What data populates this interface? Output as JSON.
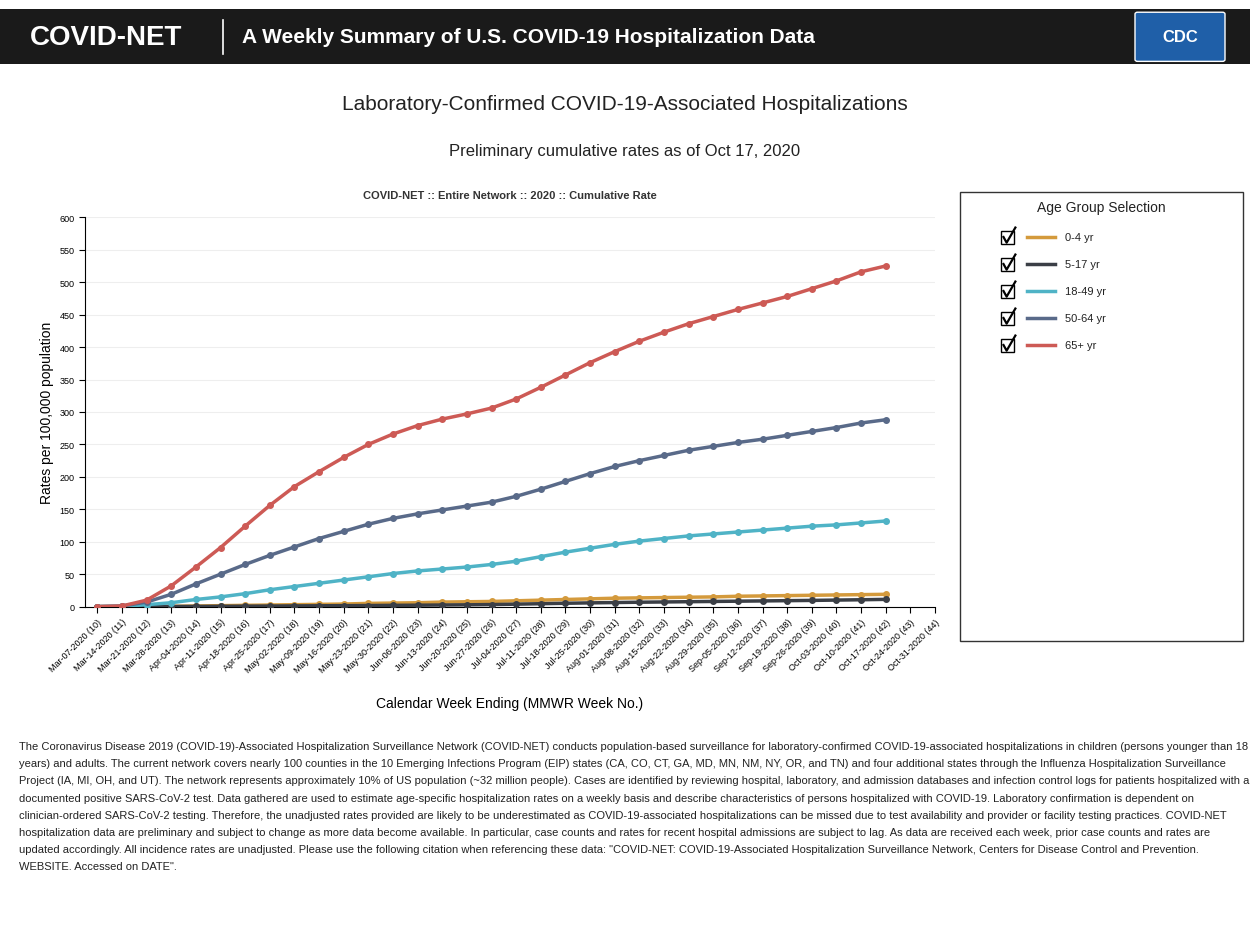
{
  "page": {
    "banner_title": "COVID-NET",
    "banner_subtitle": "A Weekly Summary of U.S. COVID-19 Hospitalization Data",
    "logo": "CDC",
    "title": "Laboratory-Confirmed COVID-19-Associated Hospitalizations",
    "subtitle": "Preliminary cumulative rates as of Oct 17, 2020",
    "footnote": "The Coronavirus Disease 2019 (COVID-19)-Associated Hospitalization Surveillance Network (COVID-NET) conducts population-based surveillance for laboratory-confirmed COVID-19-associated hospitalizations in children (persons younger than 18 years) and adults. The current network covers nearly 100 counties in the 10 Emerging Infections Program (EIP) states (CA, CO, CT, GA, MD, MN, NM, NY, OR, and TN) and four additional states through the Influenza Hospitalization Surveillance Project (IA, MI, OH, and UT). The network represents approximately 10% of US population (~32 million people). Cases are identified by reviewing hospital, laboratory, and admission databases and infection control logs for patients hospitalized with a documented positive SARS-CoV-2 test. Data gathered are used to estimate age-specific hospitalization rates on a weekly basis and describe characteristics of persons hospitalized with COVID-19. Laboratory confirmation is dependent on clinician-ordered SARS-CoV-2 testing. Therefore, the unadjusted rates provided are likely to be underestimated as COVID-19-associated hospitalizations can be missed due to test availability and provider or facility testing practices. COVID-NET hospitalization data are preliminary and subject to change as more data become available. In particular, case counts and rates for recent hospital admissions are subject to lag. As data are received each week, prior case counts and rates are updated accordingly. All incidence rates are unadjusted. Please use the following citation when referencing these data: \"COVID-NET: COVID-19-Associated Hospitalization Surveillance Network, Centers for Disease Control and Prevention. WEBSITE. Accessed on DATE\"."
  },
  "chart_data": {
    "type": "line",
    "title": "COVID-NET :: Entire Network :: 2020 :: Cumulative Rate",
    "x_label": "Calendar Week Ending (MMWR Week No.)",
    "y_label": "Rates per 100,000 population",
    "legend_title": "Age Group Selection",
    "categories": [
      "Mar-07-2020 (10)",
      "Mar-14-2020 (11)",
      "Mar-21-2020 (12)",
      "Mar-28-2020 (13)",
      "Apr-04-2020 (14)",
      "Apr-11-2020 (15)",
      "Apr-18-2020 (16)",
      "Apr-25-2020 (17)",
      "May-02-2020 (18)",
      "May-09-2020 (19)",
      "May-16-2020 (20)",
      "May-23-2020 (21)",
      "May-30-2020 (22)",
      "Jun-06-2020 (23)",
      "Jun-13-2020 (24)",
      "Jun-20-2020 (25)",
      "Jun-27-2020 (26)",
      "Jul-04-2020 (27)",
      "Jul-11-2020 (28)",
      "Jul-18-2020 (29)",
      "Jul-25-2020 (30)",
      "Aug-01-2020 (31)",
      "Aug-08-2020 (32)",
      "Aug-15-2020 (33)",
      "Aug-22-2020 (34)",
      "Aug-29-2020 (35)",
      "Sep-05-2020 (36)",
      "Sep-12-2020 (37)",
      "Sep-19-2020 (38)",
      "Sep-26-2020 (39)",
      "Oct-03-2020 (40)",
      "Oct-10-2020 (41)",
      "Oct-17-2020 (42)",
      "Oct-24-2020 (43)",
      "Oct-31-2020 (44)"
    ],
    "series": [
      {
        "name": "0-4 yr",
        "color": "#d49a3c",
        "values": [
          0,
          0,
          0.3,
          0.5,
          1,
          1.5,
          2,
          2.5,
          3,
          3.5,
          4,
          5,
          5.5,
          6,
          7,
          7.5,
          8,
          9,
          10,
          11,
          12,
          13,
          13.5,
          14,
          14.5,
          15,
          16,
          16.5,
          17,
          17.5,
          18,
          18.5,
          19,
          null,
          null
        ]
      },
      {
        "name": "5-17 yr",
        "color": "#3b3f46",
        "values": [
          0,
          0,
          0.1,
          0.2,
          0.3,
          0.5,
          0.7,
          0.9,
          1.1,
          1.3,
          1.5,
          1.7,
          2,
          2.2,
          2.5,
          2.8,
          3.2,
          3.8,
          4.5,
          5.2,
          5.8,
          6.3,
          6.8,
          7.2,
          7.6,
          8,
          8.4,
          8.8,
          9.2,
          9.6,
          10.1,
          10.6,
          11.2,
          null,
          null
        ]
      },
      {
        "name": "18-49 yr",
        "color": "#4fb3c6",
        "values": [
          0,
          0.5,
          3,
          6,
          11,
          15,
          20,
          26,
          31,
          36,
          41,
          46,
          51,
          55,
          58,
          61,
          65,
          70,
          77,
          84,
          90,
          96,
          101,
          105,
          109,
          112,
          115,
          118,
          121,
          124,
          126,
          129,
          132,
          null,
          null
        ]
      },
      {
        "name": "50-64 yr",
        "color": "#596a89",
        "values": [
          0,
          1,
          7,
          19,
          35,
          50,
          65,
          79,
          92,
          105,
          116,
          127,
          136,
          143,
          149,
          155,
          161,
          170,
          181,
          193,
          205,
          216,
          225,
          233,
          241,
          247,
          253,
          258,
          264,
          270,
          276,
          283,
          288,
          null,
          null
        ]
      },
      {
        "name": "65+ yr",
        "color": "#cd5a55",
        "values": [
          0,
          1,
          10,
          32,
          61,
          91,
          124,
          156,
          185,
          208,
          230,
          250,
          266,
          279,
          289,
          297,
          306,
          320,
          338,
          357,
          376,
          393,
          409,
          423,
          436,
          447,
          458,
          468,
          478,
          490,
          502,
          516,
          525,
          null,
          null
        ]
      }
    ],
    "ylim": [
      0,
      600
    ],
    "yticks": [
      0,
      50,
      100,
      150,
      200,
      250,
      300,
      350,
      400,
      450,
      500,
      550,
      600
    ],
    "grid": true,
    "legend": "right",
    "marker": "o",
    "line_style": "solid"
  }
}
